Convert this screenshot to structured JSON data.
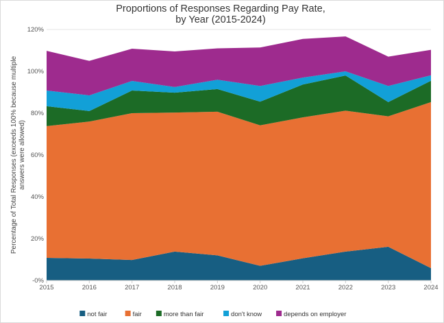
{
  "chart_data": {
    "type": "area",
    "stacked": true,
    "title_lines": [
      "Proportions of Responses Regarding Pay Rate,",
      "by Year (2015-2024)"
    ],
    "xlabel": "",
    "ylabel_lines": [
      "Percentage of Total Responses (exceeds 100% because multiple",
      "answers were allowed)"
    ],
    "x": [
      2015,
      2016,
      2017,
      2018,
      2019,
      2020,
      2021,
      2022,
      2023,
      2024
    ],
    "ylim": [
      0,
      120
    ],
    "yticks": [
      "-0%",
      "20%",
      "40%",
      "60%",
      "80%",
      "100%",
      "120%"
    ],
    "legend_position": "bottom",
    "series": [
      {
        "name": "not fair",
        "color": "#175e82",
        "values": [
          10.8,
          10.5,
          9.8,
          13.8,
          12.0,
          7.0,
          10.6,
          13.8,
          16.1,
          5.9
        ]
      },
      {
        "name": "fair",
        "color": "#e87033",
        "values": [
          63.0,
          65.5,
          70.2,
          66.5,
          68.7,
          67.2,
          67.4,
          67.4,
          62.4,
          79.4
        ]
      },
      {
        "name": "more than fair",
        "color": "#1c6b26",
        "values": [
          9.5,
          5.0,
          10.8,
          9.5,
          10.8,
          11.3,
          15.7,
          16.8,
          6.8,
          10.2
        ]
      },
      {
        "name": "don't know",
        "color": "#12a0d7",
        "values": [
          7.5,
          7.5,
          4.6,
          2.7,
          4.5,
          7.5,
          3.3,
          2.0,
          7.7,
          2.6
        ]
      },
      {
        "name": "depends on employer",
        "color": "#9e2b8e",
        "values": [
          19.0,
          16.5,
          15.4,
          17.0,
          15.0,
          18.4,
          18.5,
          16.7,
          14.0,
          12.2
        ]
      }
    ]
  }
}
